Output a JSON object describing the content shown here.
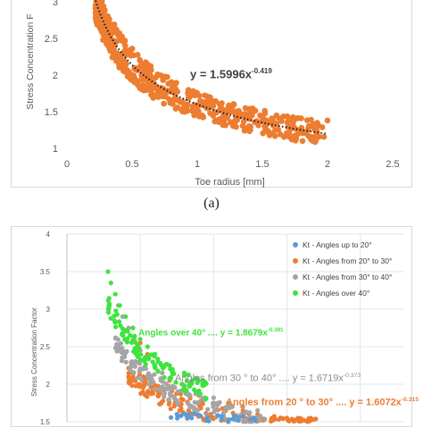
{
  "caption": "(a)",
  "chart_data": [
    {
      "type": "scatter",
      "ylabel": "Stress Concentration F",
      "xlabel": "Toe radius [mm]",
      "xlim": [
        0,
        2.5
      ],
      "ylim": [
        1,
        3
      ],
      "xticks": [
        "0",
        "0.5",
        "1",
        "1.5",
        "2",
        "2.5"
      ],
      "yticks": [
        "1",
        "1.5",
        "2",
        "2.5",
        "3"
      ],
      "grid": false,
      "series": [
        {
          "color": "#ed7d31",
          "points": [
            [
              0.22,
              2.95
            ],
            [
              0.24,
              2.8
            ],
            [
              0.25,
              2.72
            ],
            [
              0.27,
              2.63
            ],
            [
              0.28,
              2.55
            ],
            [
              0.3,
              2.48
            ],
            [
              0.32,
              2.4
            ],
            [
              0.34,
              2.33
            ],
            [
              0.36,
              2.26
            ],
            [
              0.38,
              2.2
            ],
            [
              0.4,
              2.14
            ],
            [
              0.42,
              2.1
            ],
            [
              0.45,
              2.04
            ],
            [
              0.48,
              1.98
            ],
            [
              0.5,
              1.93
            ],
            [
              0.55,
              1.86
            ],
            [
              0.6,
              1.8
            ],
            [
              0.65,
              1.75
            ],
            [
              0.7,
              1.7
            ],
            [
              0.8,
              1.62
            ],
            [
              0.9,
              1.56
            ],
            [
              1.0,
              1.52
            ],
            [
              1.1,
              1.48
            ],
            [
              1.2,
              1.45
            ],
            [
              1.3,
              1.42
            ],
            [
              1.4,
              1.4
            ],
            [
              1.5,
              1.37
            ],
            [
              1.6,
              1.34
            ],
            [
              1.7,
              1.3
            ],
            [
              1.8,
              1.28
            ],
            [
              1.9,
              1.26
            ],
            [
              2.0,
              1.38
            ]
          ]
        }
      ],
      "trendline": {
        "label_prefix": "y = 1.5996x",
        "label_exp": "-0.419",
        "a": 1.5996,
        "b": -0.419
      }
    },
    {
      "type": "scatter",
      "ylabel": "Stress Concentration Factor",
      "xlabel": "",
      "ylim": [
        1.5,
        4
      ],
      "yticks": [
        "1.5",
        "2",
        "2.5",
        "3",
        "3.5",
        "4"
      ],
      "legend_position": "top-right",
      "series": [
        {
          "name": "Kt - Angles up to 20°",
          "color": "#5b9bd5",
          "points": [
            [
              0.75,
              1.6
            ],
            [
              0.85,
              1.55
            ],
            [
              0.95,
              1.52
            ],
            [
              1.1,
              1.5
            ],
            [
              1.25,
              1.53
            ]
          ]
        },
        {
          "name": "Kt - Angles from 20° to 30°",
          "color": "#ed7d31",
          "points": [
            [
              0.45,
              2.75
            ],
            [
              0.5,
              2.55
            ],
            [
              0.55,
              2.4
            ],
            [
              0.6,
              2.25
            ],
            [
              0.65,
              2.15
            ],
            [
              0.7,
              2.05
            ],
            [
              0.8,
              1.95
            ],
            [
              0.9,
              1.85
            ],
            [
              1.0,
              1.75
            ],
            [
              1.1,
              1.7
            ],
            [
              1.2,
              1.65
            ],
            [
              1.3,
              1.6
            ],
            [
              1.4,
              1.55
            ],
            [
              1.5,
              1.55
            ],
            [
              1.65,
              1.52
            ]
          ]
        },
        {
          "name": "Kt - Angles from 30° to 40°",
          "color": "#a5a5a5",
          "points": [
            [
              0.35,
              3.05
            ],
            [
              0.38,
              2.9
            ],
            [
              0.42,
              2.75
            ],
            [
              0.46,
              2.6
            ],
            [
              0.5,
              2.45
            ],
            [
              0.55,
              2.35
            ],
            [
              0.6,
              2.25
            ],
            [
              0.65,
              2.15
            ],
            [
              0.7,
              2.08
            ],
            [
              0.8,
              1.98
            ],
            [
              0.9,
              1.9
            ],
            [
              1.0,
              1.82
            ],
            [
              1.1,
              1.75
            ],
            [
              1.2,
              1.7
            ],
            [
              1.3,
              1.65
            ]
          ]
        },
        {
          "name": "Kt - Angles over 40°",
          "color": "#3ee43e",
          "points": [
            [
              0.28,
              3.5
            ],
            [
              0.3,
              3.35
            ],
            [
              0.33,
              3.2
            ],
            [
              0.36,
              3.05
            ],
            [
              0.4,
              2.9
            ],
            [
              0.45,
              2.75
            ],
            [
              0.5,
              2.6
            ],
            [
              0.55,
              2.5
            ],
            [
              0.6,
              2.4
            ],
            [
              0.7,
              2.25
            ],
            [
              0.8,
              2.15
            ],
            [
              0.9,
              2.05
            ]
          ]
        }
      ],
      "annotations": [
        {
          "prefix": "Angles over 40° .... y = 1.8679x",
          "exp": "-0.391",
          "color": "#3ee43e"
        },
        {
          "prefix": "Angles from 30 ° to 40° .... y = 1.6719x",
          "exp": "-0.373",
          "color": "#8c8c8c"
        },
        {
          "prefix": "Angles from 20 ° to 30° .... y = 1.6072x",
          "exp": "-0.315",
          "color": "#ed7d31"
        }
      ]
    }
  ]
}
